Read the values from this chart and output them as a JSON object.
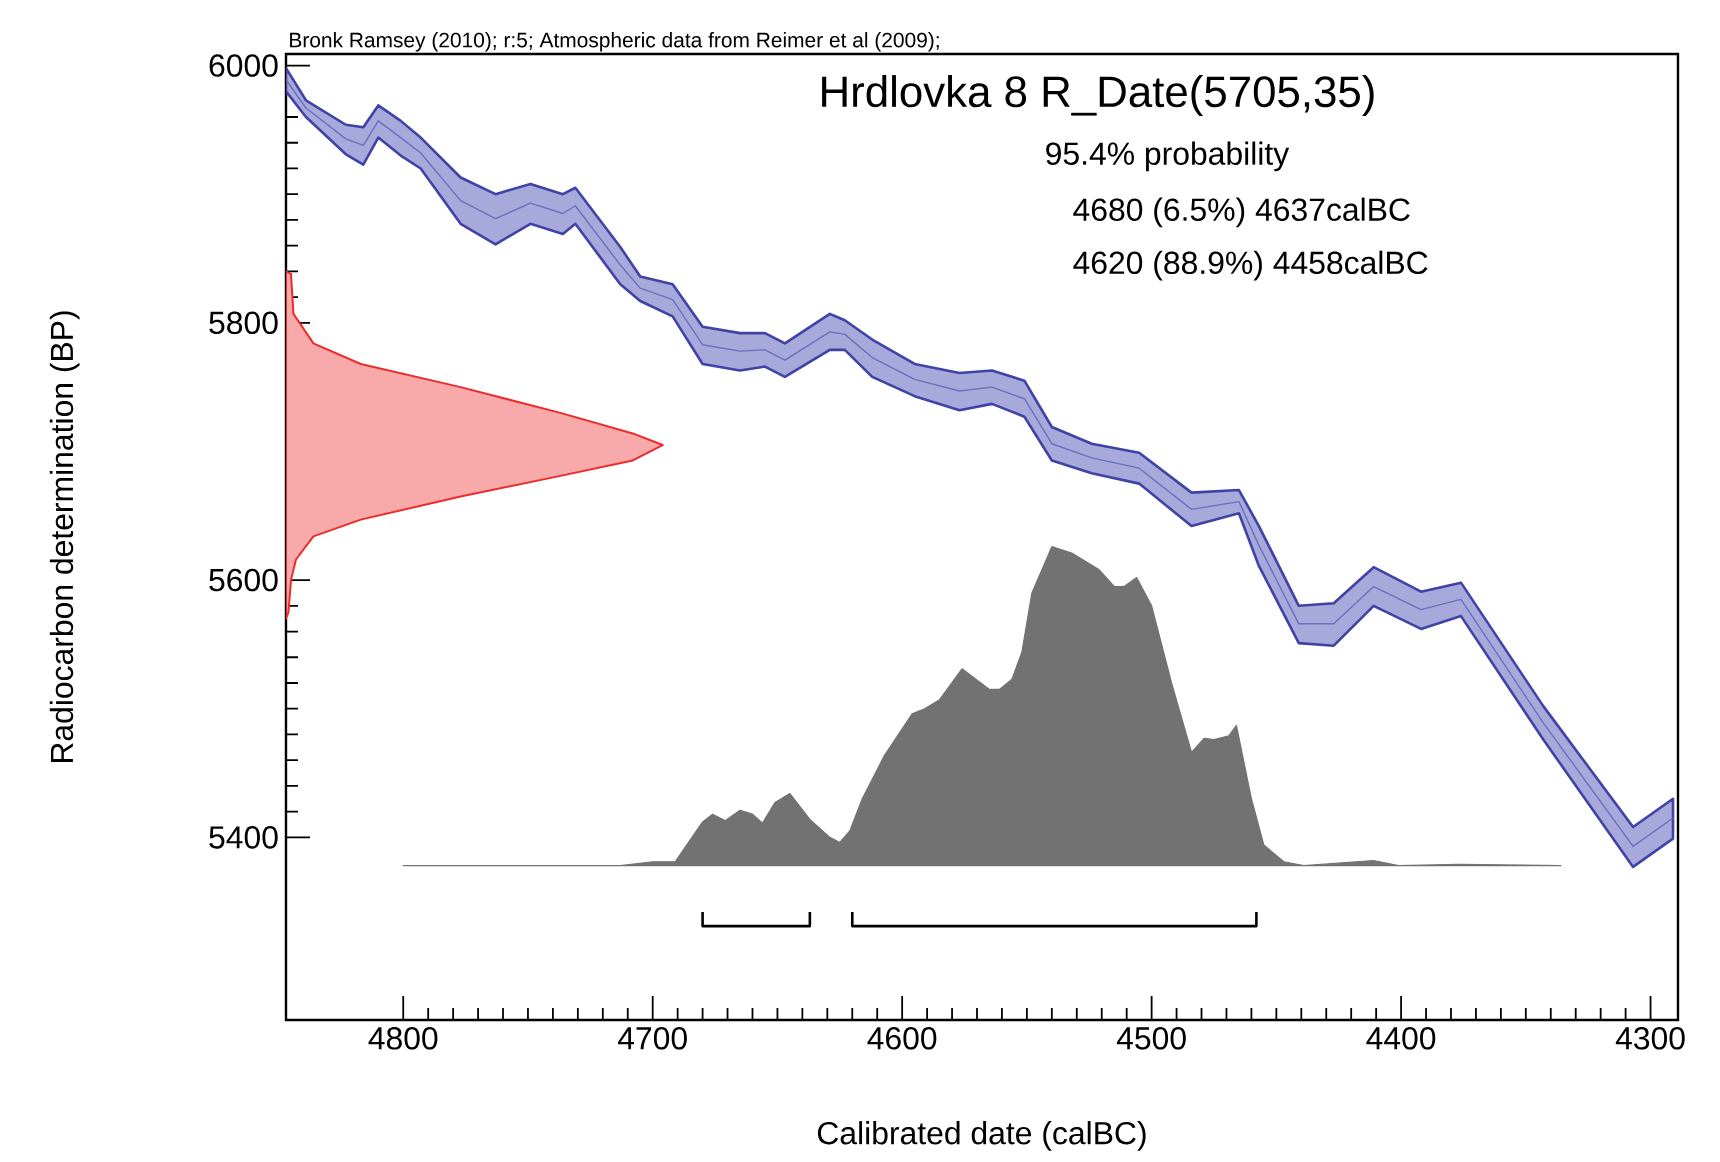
{
  "chart_data": {
    "type": "area",
    "title": "Hrdlovka 8 R_Date(5705,35)",
    "xlabel": "Calibrated date (calBC)",
    "ylabel": "Radiocarbon determination (BP)",
    "annotations": [
      "Bronk Ramsey (2010); r:5; Atmospheric data from Reimer et al (2009);",
      "95.4% probability",
      "4680 (6.5%) 4637calBC",
      "4620 (88.9%) 4458calBC"
    ],
    "xlim": [
      4847,
      4289
    ],
    "ylim": [
      5258,
      6009
    ],
    "xticks": [
      4800,
      4700,
      4600,
      4500,
      4400,
      4300
    ],
    "yticks": [
      5400,
      5600,
      5800,
      6000
    ],
    "series": [
      {
        "type": "line",
        "color": "#6a6fbf",
        "x": [
          4847,
          4839,
          4823,
          4816,
          4810,
          4801,
          4793,
          4777,
          4763,
          4749,
          4736,
          4731,
          4713,
          4705,
          4692,
          4680,
          4665,
          4655,
          4647,
          4629,
          4623,
          4612,
          4595,
          4577,
          4564,
          4551,
          4540,
          4524,
          4505,
          4484,
          4465,
          4457,
          4441,
          4427,
          4411,
          4392,
          4376,
          4343,
          4307,
          4291
        ],
        "values": [
          5989,
          5967,
          5943,
          5938,
          5957,
          5944,
          5932,
          5895,
          5881,
          5893,
          5885,
          5891,
          5845,
          5827,
          5818,
          5783,
          5778,
          5779,
          5771,
          5793,
          5791,
          5773,
          5756,
          5747,
          5750,
          5741,
          5706,
          5695,
          5687,
          5655,
          5661,
          5627,
          5566,
          5566,
          5595,
          5577,
          5585,
          5489,
          5393,
          5415
        ],
        "upper": [
          5998,
          5973,
          5954,
          5952,
          5969,
          5957,
          5944,
          5913,
          5900,
          5908,
          5900,
          5905,
          5859,
          5836,
          5830,
          5797,
          5792,
          5792,
          5784,
          5807,
          5802,
          5787,
          5768,
          5761,
          5763,
          5755,
          5719,
          5706,
          5699,
          5668,
          5670,
          5642,
          5580,
          5582,
          5610,
          5591,
          5598,
          5502,
          5408,
          5430
        ],
        "lower": [
          5980,
          5960,
          5931,
          5923,
          5944,
          5930,
          5920,
          5877,
          5861,
          5877,
          5869,
          5877,
          5830,
          5817,
          5805,
          5768,
          5763,
          5766,
          5758,
          5779,
          5779,
          5758,
          5743,
          5732,
          5737,
          5727,
          5693,
          5683,
          5675,
          5642,
          5652,
          5611,
          5551,
          5549,
          5580,
          5562,
          5572,
          5476,
          5377,
          5399
        ]
      },
      {
        "color": "#ee2b2b",
        "x": [
          4847,
          4845,
          4844,
          4836,
          4817,
          4777,
          4737,
          4708,
          4696,
          4708,
          4737,
          4777,
          4817,
          4836,
          4843,
          4845,
          4846,
          4847
        ],
        "values": [
          5840,
          5838,
          5807,
          5784,
          5768,
          5750,
          5730,
          5714,
          5705,
          5693,
          5681,
          5665,
          5647,
          5634,
          5616,
          5600,
          5575,
          5570
        ]
      },
      {
        "color": "#727272",
        "x": [
          4800,
          4713,
          4700,
          4691,
          4680,
          4676,
          4671,
          4665,
          4660,
          4656,
          4651,
          4645,
          4637,
          4629,
          4625,
          4621,
          4616,
          4607,
          4596,
          4591,
          4585,
          4576,
          4565,
          4561,
          4556,
          4552,
          4548,
          4540,
          4532,
          4521,
          4515,
          4511,
          4506,
          4500,
          4492,
          4484,
          4479,
          4475,
          4469,
          4466,
          4460,
          4455,
          4447,
          4439,
          4411,
          4401,
          4377,
          4336
        ],
        "values": [
          5378,
          5378,
          5381,
          5381,
          5412,
          5418,
          5413,
          5421,
          5418,
          5411,
          5427,
          5434,
          5414,
          5400,
          5396,
          5405,
          5430,
          5464,
          5496,
          5500,
          5507,
          5531,
          5515,
          5515,
          5523,
          5544,
          5590,
          5626,
          5621,
          5608,
          5595,
          5595,
          5602,
          5580,
          5520,
          5466,
          5477,
          5476,
          5479,
          5487,
          5430,
          5394,
          5381,
          5378,
          5382,
          5378,
          5379,
          5378
        ]
      },
      {
        "type": "line",
        "color": "#000000",
        "x": [
          4680,
          4680,
          4637,
          4637
        ],
        "values": [
          5342,
          5331,
          5331,
          5342
        ]
      },
      {
        "type": "line",
        "color": "#000000",
        "x": [
          4620,
          4620,
          4458,
          4458
        ],
        "values": [
          5342,
          5331,
          5331,
          5342
        ]
      }
    ]
  }
}
